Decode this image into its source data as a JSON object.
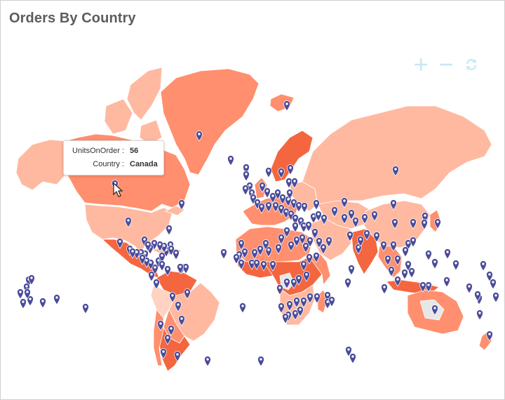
{
  "title": "Orders By Country",
  "colors": {
    "ocean": "#ffffff",
    "shade_light": "#ffb9a0",
    "shade_mid": "#ff8f6e",
    "shade_dark": "#f4663f",
    "shade_pale": "#ffd2c2",
    "no_data": "#e7e7e7",
    "border": "#ffffff",
    "marker": "#4a4b99",
    "toolbar_icon": "#c8e8f4"
  },
  "toolbar": {
    "zoom_in_icon": "plus-icon",
    "zoom_out_icon": "minus-icon",
    "reset_icon": "refresh-icon"
  },
  "tooltip": {
    "rows": [
      {
        "key": "UnitsOnOrder :",
        "value": "56"
      },
      {
        "key": "Country :",
        "value": "Canada"
      }
    ]
  },
  "markers": {
    "icon": "map-pin-icon",
    "count": 200
  }
}
